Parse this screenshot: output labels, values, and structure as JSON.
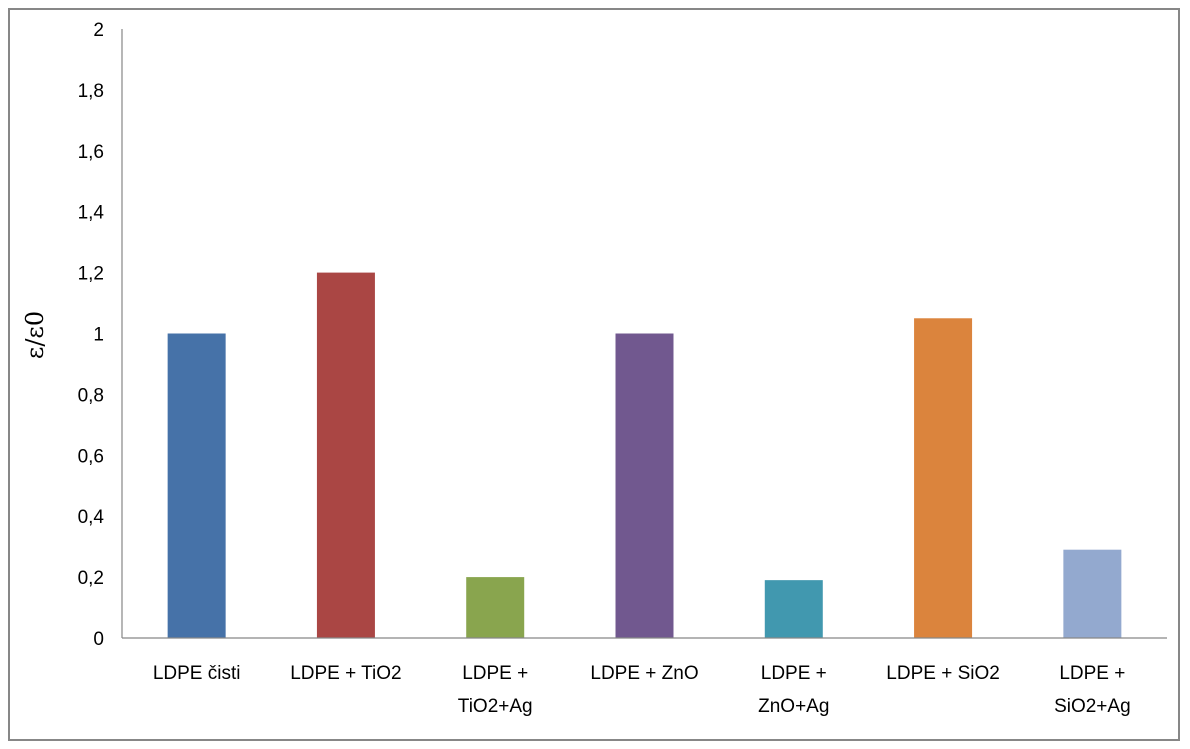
{
  "chart_data": {
    "type": "bar",
    "categories": [
      [
        "LDPE čisti"
      ],
      [
        "LDPE + TiO2"
      ],
      [
        "LDPE +",
        "TiO2+Ag"
      ],
      [
        "LDPE + ZnO"
      ],
      [
        "LDPE +",
        "ZnO+Ag"
      ],
      [
        "LDPE + SiO2"
      ],
      [
        "LDPE +",
        "SiO2+Ag"
      ]
    ],
    "values": [
      1.0,
      1.2,
      0.2,
      1.0,
      0.19,
      1.05,
      0.29
    ],
    "colors": [
      "#4672A8",
      "#AA4644",
      "#89A54E",
      "#71588F",
      "#4198AF",
      "#DB843D",
      "#93A9CF"
    ],
    "title": "",
    "xlabel": "",
    "ylabel": "ε/ε0",
    "ylim": [
      0,
      2
    ],
    "yticks": [
      "0",
      "0,2",
      "0,4",
      "0,6",
      "0,8",
      "1",
      "1,2",
      "1,4",
      "1,6",
      "1,8",
      "2"
    ],
    "grid": false,
    "legend": "none"
  }
}
